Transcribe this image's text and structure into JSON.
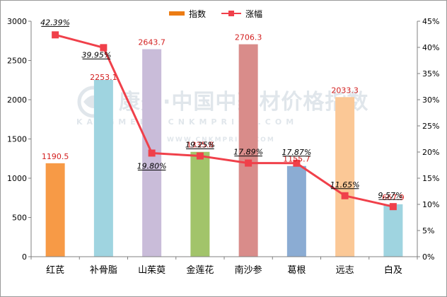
{
  "legend": {
    "bar_label": "指数",
    "line_label": "涨幅"
  },
  "watermark": {
    "brand": "康美·中国中药材价格指数",
    "latin": "KANGMEI · CNKMPRICE.COM",
    "url": "WWW.CNKMPRICE.COM"
  },
  "colors": {
    "line": "#f0404a",
    "marker": "#f0404a",
    "bar_value_label": "#d32020",
    "axis": "#808080",
    "legend_bar": "#ec7c14"
  },
  "chart_data": {
    "type": "bar",
    "categories": [
      "红芪",
      "补骨脂",
      "山茱萸",
      "金莲花",
      "南沙参",
      "葛根",
      "远志",
      "白及"
    ],
    "series": [
      {
        "name": "指数",
        "type": "bar",
        "axis": "left",
        "values": [
          1190.5,
          2253.1,
          2643.7,
          1335.8,
          2706.3,
          1155.7,
          2033.3,
          667.9
        ],
        "value_labels": [
          "1190.5",
          "2253.1",
          "2643.7",
          "1335.8",
          "2706.3",
          "1155.7",
          "2033.3",
          "667.9"
        ],
        "colors": [
          "#f79a46",
          "#9fd4e0",
          "#c9bcd9",
          "#a2c46a",
          "#d98c8a",
          "#8bacd3",
          "#fbc896",
          "#9fd4e0"
        ]
      },
      {
        "name": "涨幅",
        "type": "line",
        "axis": "right",
        "values": [
          42.39,
          39.95,
          19.8,
          19.25,
          17.89,
          17.87,
          11.65,
          9.57
        ],
        "value_labels": [
          "42.39%",
          "39.95%",
          "19.80%",
          "19.25%",
          "17.89%",
          "17.87%",
          "11.65%",
          "9.57%"
        ]
      }
    ],
    "y_left": {
      "min": 0,
      "max": 3000,
      "step": 500,
      "ticks": [
        "0",
        "500",
        "1000",
        "1500",
        "2000",
        "2500",
        "3000"
      ]
    },
    "y_right": {
      "min": 0,
      "max": 45,
      "step": 5,
      "ticks": [
        "0%",
        "5%",
        "10%",
        "15%",
        "20%",
        "25%",
        "30%",
        "35%",
        "40%",
        "45%"
      ]
    },
    "grid": false,
    "legend_position": "top-center"
  }
}
